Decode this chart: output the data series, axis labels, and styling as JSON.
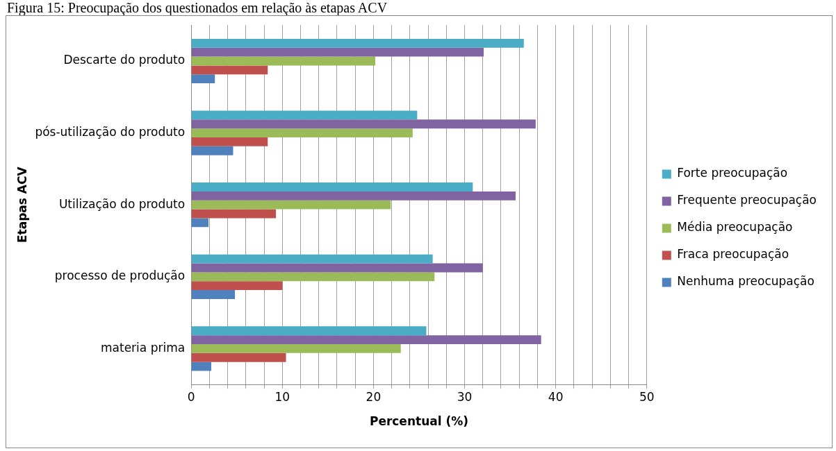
{
  "chart_data": {
    "type": "bar",
    "orientation": "horizontal",
    "title": "Figura 15: Preocupação dos questionados em relação às etapas ACV",
    "xlabel": "Percentual (%)",
    "ylabel": "Etapas ACV",
    "categories": [
      "Descarte do produto",
      "pós-utilização do produto",
      "Utilização do produto",
      "processo de produção",
      "materia prima"
    ],
    "series": [
      {
        "name": "Forte preocupação",
        "color": "#4bacc6",
        "values": [
          36.5,
          24.8,
          30.9,
          26.5,
          25.8
        ]
      },
      {
        "name": "Frequente preocupação",
        "color": "#8064a2",
        "values": [
          32.1,
          37.8,
          35.6,
          32.0,
          38.4
        ]
      },
      {
        "name": "Média preocupação",
        "color": "#9bbb59",
        "values": [
          20.2,
          24.3,
          21.9,
          26.7,
          23.0
        ]
      },
      {
        "name": "Fraca preocupação",
        "color": "#c0504d",
        "values": [
          8.4,
          8.4,
          9.3,
          10.0,
          10.4
        ]
      },
      {
        "name": "Nenhuma preocupação",
        "color": "#4f81bd",
        "values": [
          2.6,
          4.6,
          1.9,
          4.8,
          2.2
        ]
      }
    ],
    "xlim": [
      0,
      50
    ],
    "xticks": [
      0,
      {
        "value": 2,
        "label": null
      },
      {
        "value": 4,
        "label": null
      },
      {
        "value": 6,
        "label": null
      },
      {
        "value": 8,
        "label": null
      },
      10,
      {
        "value": 12,
        "label": null
      },
      {
        "value": 14,
        "label": null
      },
      {
        "value": 16,
        "label": null
      },
      {
        "value": 18,
        "label": null
      },
      20,
      {
        "value": 22,
        "label": null
      },
      {
        "value": 24,
        "label": null
      },
      {
        "value": 26,
        "label": null
      },
      {
        "value": 28,
        "label": null
      },
      30,
      {
        "value": 32,
        "label": null
      },
      {
        "value": 34,
        "label": null
      },
      {
        "value": 36,
        "label": null
      },
      {
        "value": 38,
        "label": null
      },
      40,
      {
        "value": 42,
        "label": null
      },
      {
        "value": 44,
        "label": null
      },
      {
        "value": 46,
        "label": null
      },
      {
        "value": 48,
        "label": null
      },
      50
    ],
    "grid": "x",
    "legend": "right"
  }
}
